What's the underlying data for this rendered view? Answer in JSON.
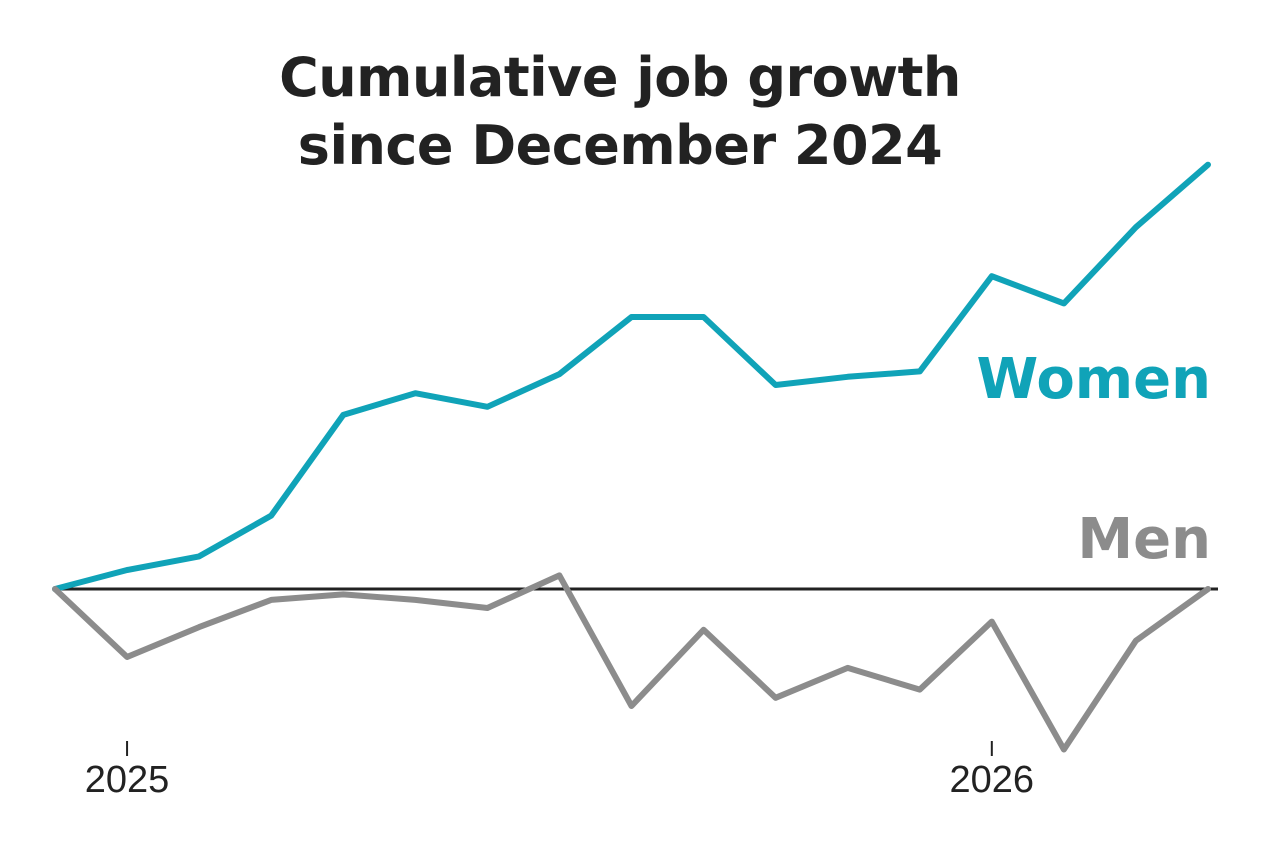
{
  "chart_data": {
    "type": "line",
    "title_lines": [
      "Cumulative job growth",
      "since December 2024"
    ],
    "xlabel": "",
    "ylabel": "",
    "x": [
      "2024-12",
      "2025-01",
      "2025-02",
      "2025-03",
      "2025-04",
      "2025-05",
      "2025-06",
      "2025-07",
      "2025-08",
      "2025-09",
      "2025-10",
      "2025-11",
      "2025-12",
      "2026-01",
      "2026-02",
      "2026-03",
      "2026-04"
    ],
    "x_ticks": [
      {
        "x": "2025-01",
        "label": "2025"
      },
      {
        "x": "2026-01",
        "label": "2026"
      }
    ],
    "ylim": [
      -0.6,
      1.5
    ],
    "baseline": 0,
    "grid": false,
    "series": [
      {
        "name": "Women",
        "color": "#10a3b8",
        "values": [
          0,
          0.07,
          0.12,
          0.27,
          0.64,
          0.72,
          0.67,
          0.79,
          1.0,
          1.0,
          0.75,
          0.78,
          0.8,
          1.15,
          1.05,
          1.33,
          1.56
        ]
      },
      {
        "name": "Men",
        "color": "#8c8c8c",
        "values": [
          0,
          -0.25,
          -0.14,
          -0.04,
          -0.02,
          -0.04,
          -0.07,
          0.05,
          -0.43,
          -0.15,
          -0.4,
          -0.29,
          -0.37,
          -0.12,
          -0.59,
          -0.19,
          0.0
        ]
      }
    ],
    "axis_color": "#222222"
  }
}
